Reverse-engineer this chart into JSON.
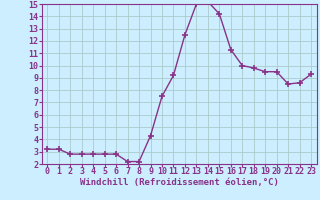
{
  "x": [
    0,
    1,
    2,
    3,
    4,
    5,
    6,
    7,
    8,
    9,
    10,
    11,
    12,
    13,
    14,
    15,
    16,
    17,
    18,
    19,
    20,
    21,
    22,
    23
  ],
  "y": [
    3.2,
    3.2,
    2.8,
    2.8,
    2.8,
    2.8,
    2.8,
    2.2,
    2.2,
    4.3,
    7.5,
    9.2,
    12.5,
    15.0,
    15.2,
    14.2,
    11.3,
    10.0,
    9.8,
    9.5,
    9.5,
    8.5,
    8.6,
    9.3
  ],
  "line_color": "#883388",
  "marker": "+",
  "marker_size": 4,
  "marker_lw": 1.2,
  "bg_color": "#cceeff",
  "grid_color": "#aacccc",
  "xlabel": "Windchill (Refroidissement éolien,°C)",
  "xlabel_color": "#883388",
  "xlabel_fontsize": 6.5,
  "ylim": [
    2,
    15
  ],
  "xlim": [
    -0.5,
    23.5
  ],
  "yticks": [
    2,
    3,
    4,
    5,
    6,
    7,
    8,
    9,
    10,
    11,
    12,
    13,
    14,
    15
  ],
  "xticks": [
    0,
    1,
    2,
    3,
    4,
    5,
    6,
    7,
    8,
    9,
    10,
    11,
    12,
    13,
    14,
    15,
    16,
    17,
    18,
    19,
    20,
    21,
    22,
    23
  ],
  "tick_fontsize": 6,
  "tick_color": "#883388",
  "axis_color": "#883388",
  "spine_color": "#883388"
}
